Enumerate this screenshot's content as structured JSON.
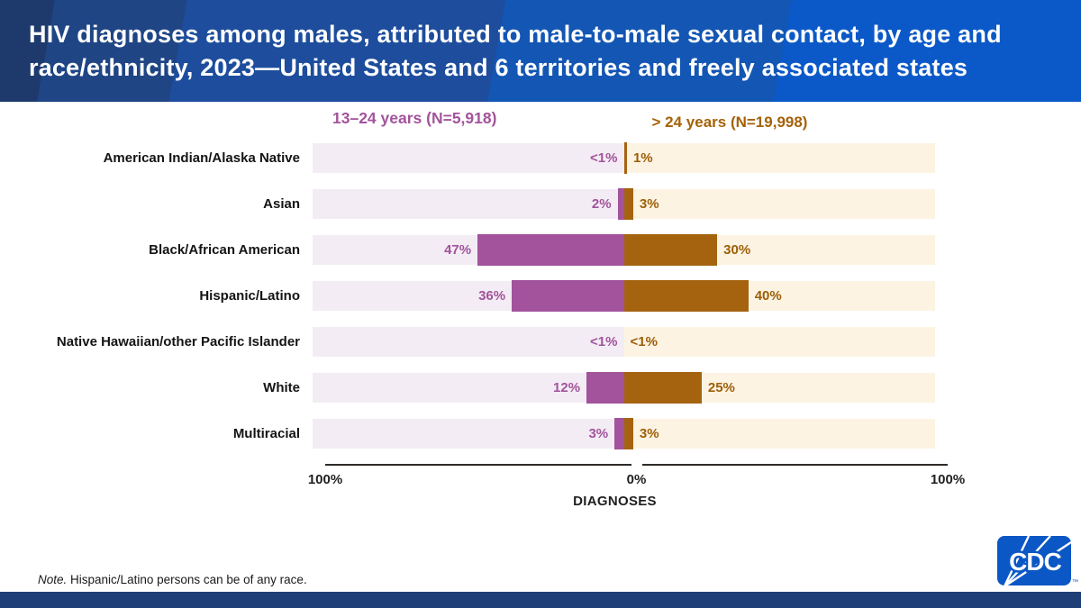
{
  "header": {
    "title_line1": "HIV diagnoses among males, attributed to male-to-male sexual contact, by age and",
    "title_line2": "race/ethnicity, 2023—United States and 6 territories and freely associated states"
  },
  "chart_data": {
    "type": "bar",
    "variant": "diverging-horizontal",
    "categories": [
      "American Indian/Alaska Native",
      "Asian",
      "Black/African American",
      "Hispanic/Latino",
      "Native Hawaiian/other Pacific Islander",
      "White",
      "Multiracial"
    ],
    "series": [
      {
        "name": "13–24 years (N=5,918)",
        "side": "left",
        "color": "#a2539c",
        "track_color": "#f3ecf4",
        "label_color": "#a2539c",
        "value_labels": [
          "<1%",
          "2%",
          "47%",
          "36%",
          "<1%",
          "12%",
          "3%"
        ],
        "values": [
          0.5,
          2,
          47,
          36,
          0.5,
          12,
          3
        ]
      },
      {
        "name": "> 24 years (N=19,998)",
        "side": "right",
        "color": "#a56310",
        "track_color": "#fdf3e3",
        "label_color": "#9c5f07",
        "value_labels": [
          "1%",
          "3%",
          "30%",
          "40%",
          "<1%",
          "25%",
          "3%"
        ],
        "values": [
          1,
          3,
          30,
          40,
          0.5,
          25,
          3
        ]
      }
    ],
    "axis": {
      "left_tick": "100%",
      "center_tick": "0%",
      "right_tick": "100%",
      "xlabel": "DIAGNOSES",
      "xlim": [
        -100,
        100
      ]
    },
    "legend_position": "top",
    "grid": false
  },
  "note": {
    "label": "Note.",
    "text": " Hispanic/Latino persons can be of any race."
  },
  "footer": {
    "logo_text": "CDC",
    "trademark": "™"
  },
  "colors": {
    "header_bar": "#1d4d9c",
    "footer_bar": "#1e3f78",
    "purple": "#a2539c",
    "brown": "#a56310"
  }
}
